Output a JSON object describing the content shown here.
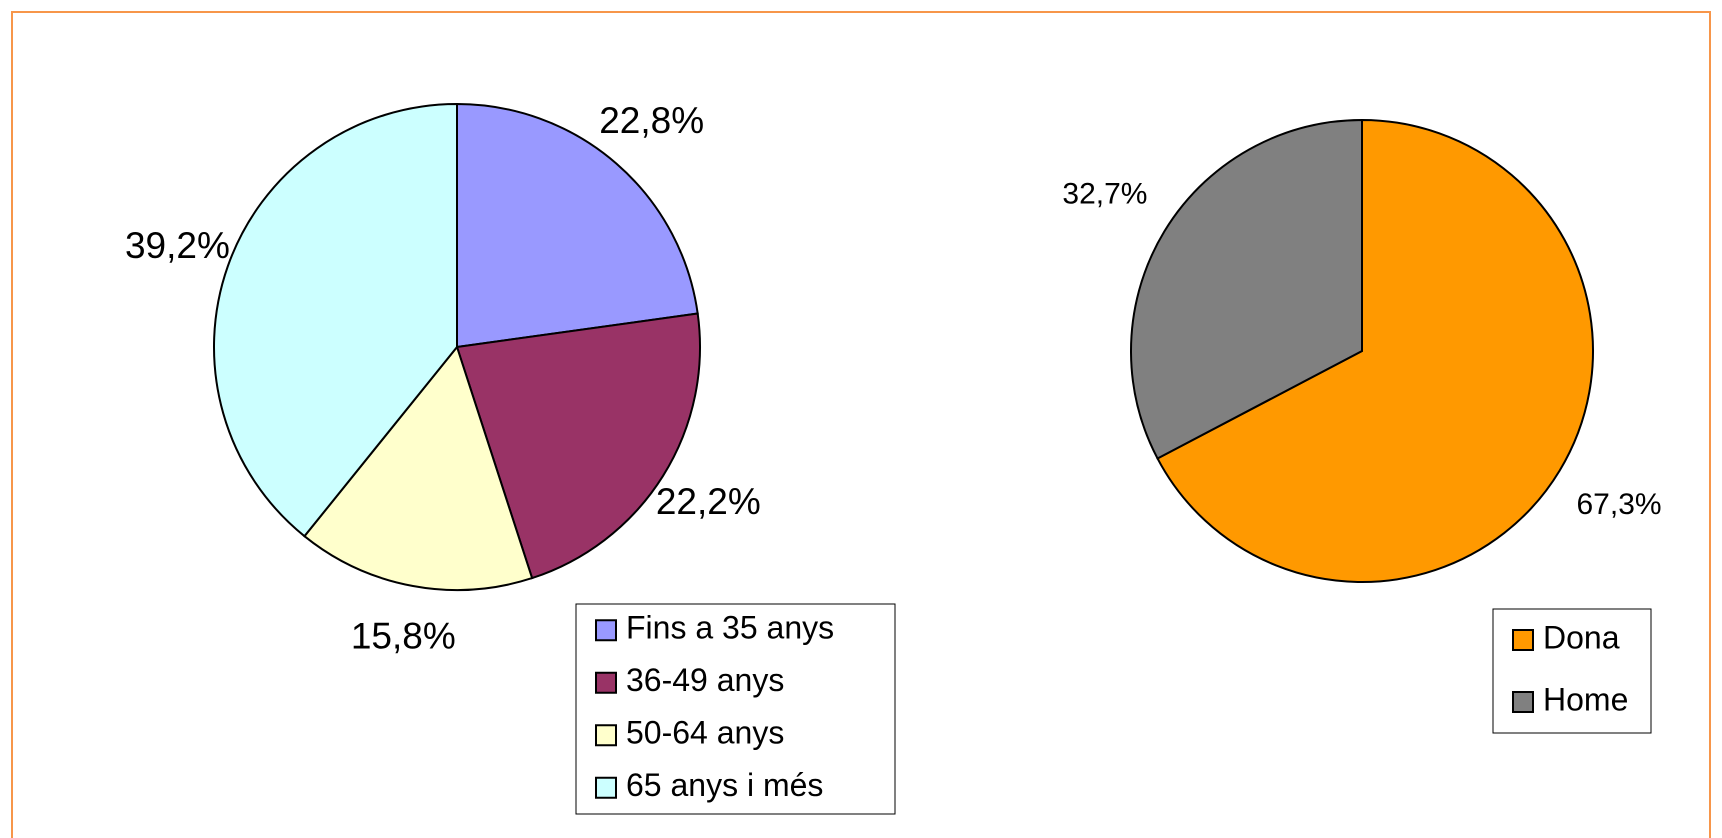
{
  "chart_data": [
    {
      "type": "pie",
      "categories": [
        "Fins a 35 anys",
        "36-49 anys",
        "50-64 anys",
        "65 anys i més"
      ],
      "values": [
        22.8,
        22.2,
        15.8,
        39.2
      ],
      "value_labels": [
        "22,8%",
        "22,2%",
        "15,8%",
        "39,2%"
      ],
      "colors": [
        "#9999ff",
        "#993366",
        "#ffffcc",
        "#ccffff"
      ],
      "legend": "bottom-right"
    },
    {
      "type": "pie",
      "categories": [
        "Dona",
        "Home"
      ],
      "values": [
        67.3,
        32.7
      ],
      "value_labels": [
        "67,3%",
        "32,7%"
      ],
      "colors": [
        "#ff9900",
        "#808080"
      ],
      "legend": "bottom-right"
    }
  ]
}
